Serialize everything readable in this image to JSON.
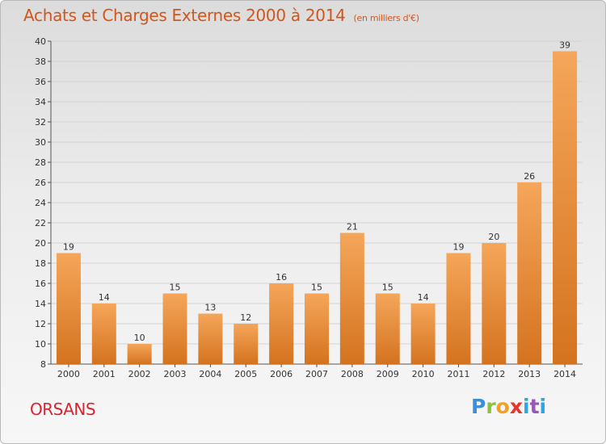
{
  "header": {
    "title": "Achats et Charges Externes 2000 à 2014",
    "subtitle": "(en milliers d'€)"
  },
  "footer": {
    "commune": "ORSANS",
    "logo_letters": [
      "P",
      "r",
      "o",
      "x",
      "i",
      "t",
      "i"
    ]
  },
  "colors": {
    "bar_light": "#f5a65a",
    "bar_dark": "#d4731f",
    "title": "#d2561c",
    "commune": "#d92530"
  },
  "chart_data": {
    "type": "bar",
    "categories": [
      "2000",
      "2001",
      "2002",
      "2003",
      "2004",
      "2005",
      "2006",
      "2007",
      "2008",
      "2009",
      "2010",
      "2011",
      "2012",
      "2013",
      "2014"
    ],
    "values": [
      19,
      14,
      10,
      15,
      13,
      12,
      16,
      15,
      21,
      15,
      14,
      19,
      20,
      26,
      39
    ],
    "ylim": [
      8,
      40
    ],
    "yticks": [
      8,
      10,
      12,
      14,
      16,
      18,
      20,
      22,
      24,
      26,
      28,
      30,
      32,
      34,
      36,
      38,
      40
    ],
    "grid": true,
    "legend": "none"
  }
}
